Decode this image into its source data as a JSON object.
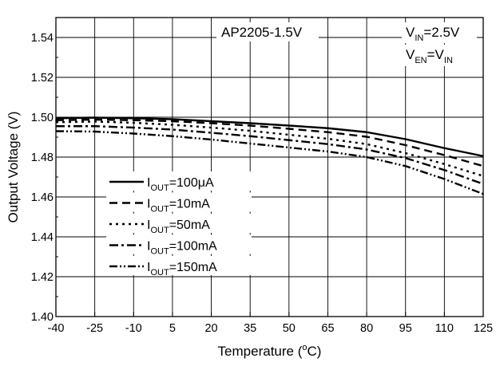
{
  "chart_data": {
    "type": "line",
    "title": "AP2205-1.5V",
    "annotations": {
      "vin": {
        "main": "V",
        "sub": "IN",
        "rest": "=2.5V"
      },
      "ven": {
        "main": "V",
        "sub": "EN",
        "eq": "=V",
        "sub2": "IN"
      }
    },
    "xlabel": {
      "text": "Temperature (",
      "sup": "o",
      "tail": "C)"
    },
    "ylabel": "Output Voltage (V)",
    "xlim": [
      -40,
      125
    ],
    "ylim": [
      1.4,
      1.55
    ],
    "xticks": [
      -40,
      -25,
      -10,
      5,
      20,
      35,
      50,
      65,
      80,
      95,
      110,
      125
    ],
    "yticks": [
      "1.40",
      "1.42",
      "1.44",
      "1.46",
      "1.48",
      "1.50",
      "1.52",
      "1.54"
    ],
    "grid": true,
    "legend_position": "left-middle",
    "series": [
      {
        "name_main": "I",
        "name_sub": "OUT",
        "name_rest": "=100μA",
        "dash": "solid",
        "points": [
          [
            -40,
            1.4995
          ],
          [
            -25,
            1.4998
          ],
          [
            -10,
            1.4995
          ],
          [
            5,
            1.499
          ],
          [
            20,
            1.498
          ],
          [
            35,
            1.497
          ],
          [
            50,
            1.4958
          ],
          [
            65,
            1.4945
          ],
          [
            80,
            1.4925
          ],
          [
            95,
            1.489
          ],
          [
            110,
            1.4845
          ],
          [
            125,
            1.4805
          ]
        ]
      },
      {
        "name_main": "I",
        "name_sub": "OUT",
        "name_rest": "=10mA",
        "dash": "dash",
        "points": [
          [
            -40,
            1.4985
          ],
          [
            -25,
            1.4988
          ],
          [
            -10,
            1.4985
          ],
          [
            5,
            1.498
          ],
          [
            20,
            1.497
          ],
          [
            35,
            1.4958
          ],
          [
            50,
            1.4942
          ],
          [
            65,
            1.4925
          ],
          [
            80,
            1.4902
          ],
          [
            95,
            1.486
          ],
          [
            110,
            1.481
          ],
          [
            125,
            1.4755
          ]
        ]
      },
      {
        "name_main": "I",
        "name_sub": "OUT",
        "name_rest": "=50mA",
        "dash": "dot",
        "points": [
          [
            -40,
            1.4975
          ],
          [
            -25,
            1.4978
          ],
          [
            -10,
            1.4972
          ],
          [
            5,
            1.4962
          ],
          [
            20,
            1.4948
          ],
          [
            35,
            1.4932
          ],
          [
            50,
            1.4912
          ],
          [
            65,
            1.4892
          ],
          [
            80,
            1.4865
          ],
          [
            95,
            1.482
          ],
          [
            110,
            1.4765
          ],
          [
            125,
            1.4705
          ]
        ]
      },
      {
        "name_main": "I",
        "name_sub": "OUT",
        "name_rest": "=100mA",
        "dash": "dashdot",
        "points": [
          [
            -40,
            1.4955
          ],
          [
            -25,
            1.4955
          ],
          [
            -10,
            1.4948
          ],
          [
            5,
            1.4938
          ],
          [
            20,
            1.4922
          ],
          [
            35,
            1.4905
          ],
          [
            50,
            1.4885
          ],
          [
            65,
            1.4865
          ],
          [
            80,
            1.4838
          ],
          [
            95,
            1.4795
          ],
          [
            110,
            1.4735
          ],
          [
            125,
            1.4665
          ]
        ]
      },
      {
        "name_main": "I",
        "name_sub": "OUT",
        "name_rest": "=150mA",
        "dash": "dashdotdot",
        "points": [
          [
            -40,
            1.493
          ],
          [
            -25,
            1.4928
          ],
          [
            -10,
            1.4918
          ],
          [
            5,
            1.4905
          ],
          [
            20,
            1.4888
          ],
          [
            35,
            1.4868
          ],
          [
            50,
            1.4848
          ],
          [
            65,
            1.4828
          ],
          [
            80,
            1.48
          ],
          [
            95,
            1.4755
          ],
          [
            110,
            1.469
          ],
          [
            125,
            1.4615
          ]
        ]
      }
    ]
  }
}
